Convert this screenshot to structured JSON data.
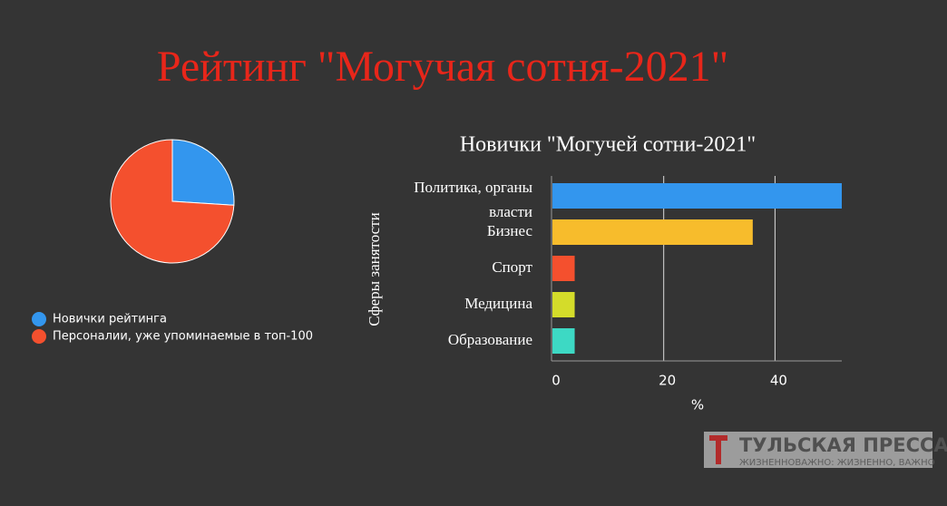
{
  "title": "Рейтинг \"Могучая сотня-2021\"",
  "chart_data": [
    {
      "type": "pie",
      "categories": [
        "Новички рейтинга",
        "Персоналии, уже упоминаемые в топ-100"
      ],
      "values": [
        26,
        74
      ],
      "colors": [
        "#3396ee",
        "#f4502e"
      ],
      "legend": "bottom-left"
    },
    {
      "type": "bar",
      "orientation": "horizontal",
      "title": "Новички \"Могучей сотни-2021\"",
      "categories": [
        "Политика, органы власти",
        "Бизнес",
        "Спорт",
        "Медицина",
        "Образование"
      ],
      "values": [
        52,
        36,
        4,
        4,
        4
      ],
      "colors": [
        "#3396ee",
        "#f7bc2c",
        "#f4502e",
        "#d4dc2a",
        "#3dd9c4"
      ],
      "xlim": [
        0,
        52
      ],
      "xticks": [
        0,
        20,
        40
      ],
      "grid": true,
      "xlabel": "%",
      "ylabel": "Сферы занятости"
    }
  ],
  "watermark": {
    "name": "ТУЛЬСКАЯ ПРЕССА",
    "slogan": "ЖИЗНЕННОВАЖНО: ЖИЗНЕННО, ВАЖНО"
  }
}
